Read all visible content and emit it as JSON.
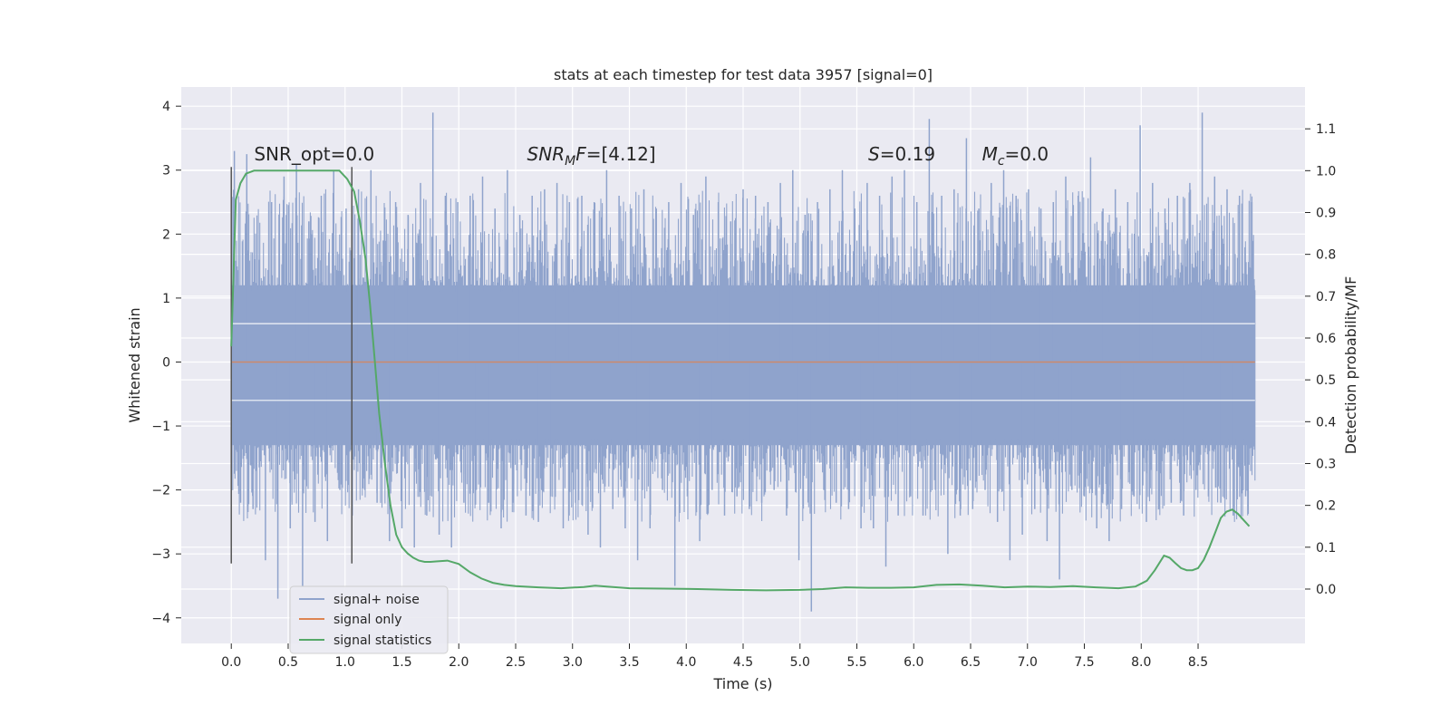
{
  "chart_data": {
    "type": "line",
    "title": "stats at each timestep for test data 3957 [signal=0]",
    "xlabel": "Time (s)",
    "ylabel": "Whitened strain",
    "ylabel_right": "Detection probability/MF",
    "xlim": [
      -0.44,
      9.44
    ],
    "ylim": [
      -4.4,
      4.3
    ],
    "ylim_right": [
      -0.13,
      1.2
    ],
    "x_ticks": [
      0.0,
      0.5,
      1.0,
      1.5,
      2.0,
      2.5,
      3.0,
      3.5,
      4.0,
      4.5,
      5.0,
      5.5,
      6.0,
      6.5,
      7.0,
      7.5,
      8.0,
      8.5
    ],
    "x_tick_labels": [
      "0.0",
      "0.5",
      "1.0",
      "1.5",
      "2.0",
      "2.5",
      "3.0",
      "3.5",
      "4.0",
      "4.5",
      "5.0",
      "5.5",
      "6.0",
      "6.5",
      "7.0",
      "7.5",
      "8.0",
      "8.5"
    ],
    "y_ticks": [
      -4,
      -3,
      -2,
      -1,
      0,
      1,
      2,
      3,
      4
    ],
    "y_tick_labels": [
      "−4",
      "−3",
      "−2",
      "−1",
      "0",
      "1",
      "2",
      "3",
      "4"
    ],
    "y_ticks_right": [
      0.0,
      0.1,
      0.2,
      0.3,
      0.4,
      0.5,
      0.6,
      0.7,
      0.8,
      0.9,
      1.0,
      1.1
    ],
    "y_tick_labels_right": [
      "0.0",
      "0.1",
      "0.2",
      "0.3",
      "0.4",
      "0.5",
      "0.6",
      "0.7",
      "0.8",
      "0.9",
      "1.0",
      "1.1"
    ],
    "grid": true,
    "legend_position": "lower-left",
    "series": [
      {
        "name": "signal+ noise",
        "color": "#8fa3cc",
        "axis": "left",
        "kind": "noise",
        "x_range": [
          0.0,
          9.0
        ],
        "envelope": [
          1.2,
          -1.3
        ],
        "peak_max": 3.9,
        "peak_min": -3.9,
        "values": [
          3.3,
          -2.2,
          3.25,
          -2.3,
          1.6,
          -3.1,
          2.5,
          -3.7,
          2.9,
          -2.6,
          3.1,
          -3.5,
          2.2,
          -2.5,
          2.6,
          -2.8,
          3.0,
          -2.0,
          2.4,
          -2.4,
          2.7,
          -2.0,
          3.0,
          -2.2,
          1.9,
          -2.8,
          2.5,
          -2.6,
          2.3,
          -2.9,
          2.8,
          -2.4,
          3.9,
          -2.7,
          2.6,
          -2.9,
          2.5,
          -2.2,
          2.6,
          -2.0,
          2.9,
          -2.2,
          2.4,
          -2.6,
          3.0,
          -1.9,
          2.3,
          -2.4,
          2.6,
          -2.5,
          2.7,
          -2.1,
          2.8,
          -2.6,
          2.5,
          -2.2,
          2.6,
          -2.7,
          2.5,
          -2.9,
          3.0,
          -2.3,
          2.6,
          -2.6,
          2.4,
          -3.1,
          2.7,
          -2.6,
          2.4,
          -2.0,
          2.5,
          -3.5,
          2.8,
          -2.1,
          2.3,
          -2.8,
          2.9,
          -2.0,
          2.5,
          -2.4,
          2.2,
          -2.1,
          2.7,
          -2.3,
          2.6,
          -2.2,
          2.5,
          -2.0,
          2.8,
          -2.4,
          3.0,
          -3.1,
          2.3,
          -3.9,
          2.5,
          -2.0,
          2.7,
          -2.2,
          3.0,
          -2.3,
          2.4,
          -2.6,
          2.8,
          -2.6,
          2.6,
          -3.2,
          2.9,
          -2.4,
          3.0,
          -2.1,
          2.5,
          -2.4,
          3.8,
          -2.0,
          2.6,
          -3.0,
          2.7,
          -2.4,
          3.5,
          -2.3,
          2.4,
          -2.0,
          2.8,
          -2.5,
          3.0,
          -3.1,
          2.6,
          -2.7,
          2.7,
          -2.3,
          2.4,
          -2.8,
          2.5,
          -3.4,
          2.9,
          -2.0,
          2.6,
          -2.1,
          3.2,
          -2.6,
          2.4,
          -2.8,
          2.7,
          -2.3,
          2.5,
          -2.1,
          3.7,
          -2.5,
          2.8,
          -2.3,
          2.4,
          -2.2,
          2.6,
          -2.4,
          2.8,
          -2.0,
          3.9,
          -2.1,
          2.9,
          -2.2,
          2.7,
          -2.4,
          2.6,
          -2.1,
          2.5
        ]
      },
      {
        "name": "signal only",
        "color": "#dd8452",
        "axis": "left",
        "x": [
          0.0,
          9.0
        ],
        "y": [
          0.0,
          0.0
        ]
      },
      {
        "name": "signal statistics",
        "color": "#55a868",
        "axis": "right",
        "x": [
          0.0,
          0.04,
          0.08,
          0.13,
          0.2,
          0.3,
          0.5,
          0.7,
          0.85,
          0.95,
          1.02,
          1.08,
          1.13,
          1.18,
          1.22,
          1.26,
          1.3,
          1.35,
          1.4,
          1.45,
          1.5,
          1.55,
          1.6,
          1.65,
          1.7,
          1.75,
          1.8,
          1.9,
          2.0,
          2.1,
          2.2,
          2.3,
          2.4,
          2.5,
          2.7,
          2.9,
          3.1,
          3.2,
          3.3,
          3.5,
          3.8,
          4.1,
          4.4,
          4.7,
          5.0,
          5.2,
          5.4,
          5.6,
          5.8,
          6.0,
          6.2,
          6.4,
          6.6,
          6.8,
          7.0,
          7.2,
          7.4,
          7.6,
          7.8,
          7.95,
          8.05,
          8.12,
          8.2,
          8.25,
          8.3,
          8.35,
          8.4,
          8.45,
          8.5,
          8.55,
          8.6,
          8.65,
          8.7,
          8.75,
          8.8,
          8.85,
          8.9,
          8.95
        ],
        "y": [
          0.58,
          0.93,
          0.97,
          0.993,
          1.0,
          1.0,
          1.0,
          1.0,
          1.0,
          1.0,
          0.98,
          0.95,
          0.88,
          0.79,
          0.68,
          0.55,
          0.42,
          0.3,
          0.2,
          0.13,
          0.1,
          0.085,
          0.075,
          0.068,
          0.065,
          0.065,
          0.066,
          0.068,
          0.06,
          0.04,
          0.025,
          0.015,
          0.01,
          0.007,
          0.004,
          0.002,
          0.005,
          0.008,
          0.006,
          0.002,
          0.001,
          0.0,
          -0.002,
          -0.003,
          -0.002,
          0.0,
          0.004,
          0.003,
          0.003,
          0.004,
          0.01,
          0.011,
          0.008,
          0.004,
          0.006,
          0.005,
          0.007,
          0.004,
          0.002,
          0.006,
          0.02,
          0.045,
          0.08,
          0.075,
          0.062,
          0.05,
          0.045,
          0.045,
          0.05,
          0.07,
          0.1,
          0.135,
          0.17,
          0.185,
          0.19,
          0.18,
          0.165,
          0.15
        ]
      }
    ],
    "vlines": [
      {
        "x": 0.0,
        "y_range": [
          -3.15,
          3.05
        ],
        "color": "#555555"
      },
      {
        "x": 1.06,
        "y_range": [
          -3.15,
          3.05
        ],
        "color": "#555555"
      }
    ],
    "annotations": [
      {
        "text": "SNR_opt=0.0",
        "x": 0.2,
        "y": 3.15
      },
      {
        "text": "SNR",
        "sub": "M",
        "rest": "F=[4.12]",
        "italic": true,
        "x": 2.6,
        "y": 3.15
      },
      {
        "text": "S",
        "rest": "=0.19",
        "italic": true,
        "x": 5.6,
        "y": 3.15
      },
      {
        "text": "M",
        "sub": "c",
        "rest": "=0.0",
        "italic": true,
        "x": 6.6,
        "y": 3.15
      }
    ],
    "legend": [
      {
        "label": "signal+ noise",
        "color": "#8fa3cc"
      },
      {
        "label": "signal only",
        "color": "#dd8452"
      },
      {
        "label": "signal statistics",
        "color": "#55a868"
      }
    ]
  }
}
